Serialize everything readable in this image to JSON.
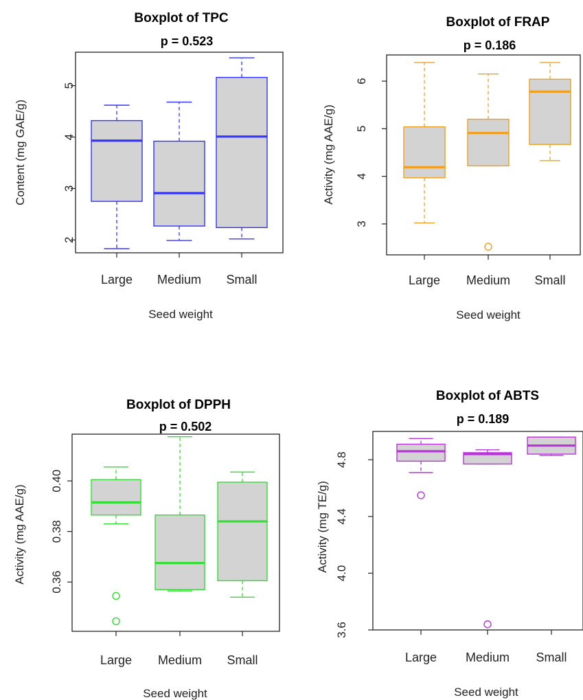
{
  "chart_data": [
    {
      "type": "boxplot",
      "title": "Boxplot of TPC",
      "subtitle": "p = 0.523",
      "xlabel": "Seed weight",
      "ylabel": "Content (mg GAE/g)",
      "categories": [
        "Large",
        "Medium",
        "Small"
      ],
      "yticks": [
        "2",
        "3",
        "4",
        "5"
      ],
      "ylim": [
        1.75,
        5.65
      ],
      "color": "#3333ff",
      "boxes": [
        {
          "category": "Large",
          "whisker_low": 1.83,
          "q1": 2.75,
          "median": 3.93,
          "q3": 4.32,
          "whisker_high": 4.62,
          "outliers": []
        },
        {
          "category": "Medium",
          "whisker_low": 1.99,
          "q1": 2.27,
          "median": 2.91,
          "q3": 3.92,
          "whisker_high": 4.68,
          "outliers": []
        },
        {
          "category": "Small",
          "whisker_low": 2.02,
          "q1": 2.24,
          "median": 4.01,
          "q3": 5.16,
          "whisker_high": 5.54,
          "outliers": []
        }
      ]
    },
    {
      "type": "boxplot",
      "title": "Boxplot of FRAP",
      "subtitle": "p = 0.186",
      "xlabel": "Seed weight",
      "ylabel": "Activity (mg AAE/g)",
      "categories": [
        "Large",
        "Medium",
        "Small"
      ],
      "yticks": [
        "3",
        "4",
        "5",
        "6"
      ],
      "ylim": [
        2.35,
        6.55
      ],
      "color": "#f0a020",
      "boxes": [
        {
          "category": "Large",
          "whisker_low": 3.02,
          "q1": 3.97,
          "median": 4.19,
          "q3": 5.04,
          "whisker_high": 6.39,
          "outliers": []
        },
        {
          "category": "Medium",
          "whisker_low": 4.22,
          "q1": 4.22,
          "median": 4.91,
          "q3": 5.2,
          "whisker_high": 6.15,
          "outliers": [
            2.52
          ]
        },
        {
          "category": "Small",
          "whisker_low": 4.33,
          "q1": 4.67,
          "median": 5.78,
          "q3": 6.04,
          "whisker_high": 6.39,
          "outliers": []
        }
      ]
    },
    {
      "type": "boxplot",
      "title": "Boxplot of DPPH",
      "subtitle": "p = 0.502",
      "xlabel": "Seed weight",
      "ylabel": "Activity (mg AAE/g)",
      "categories": [
        "Large",
        "Medium",
        "Small"
      ],
      "yticks": [
        "0.36",
        "0.38",
        "0.40"
      ],
      "ylim": [
        0.3405,
        0.4185
      ],
      "color": "#33dd33",
      "boxes": [
        {
          "category": "Large",
          "whisker_low": 0.383,
          "q1": 0.3865,
          "median": 0.3915,
          "q3": 0.4005,
          "whisker_high": 0.4055,
          "outliers": [
            0.3545,
            0.3445
          ]
        },
        {
          "category": "Medium",
          "whisker_low": 0.3565,
          "q1": 0.357,
          "median": 0.3675,
          "q3": 0.3865,
          "whisker_high": 0.4175,
          "outliers": []
        },
        {
          "category": "Small",
          "whisker_low": 0.354,
          "q1": 0.3605,
          "median": 0.384,
          "q3": 0.3995,
          "whisker_high": 0.4035,
          "outliers": []
        }
      ]
    },
    {
      "type": "boxplot",
      "title": "Boxplot of ABTS",
      "subtitle": "p = 0.189",
      "xlabel": "Seed weight",
      "ylabel": "Activity (mg TE/g)",
      "categories": [
        "Large",
        "Medium",
        "Small"
      ],
      "yticks": [
        "3.6",
        "4.0",
        "4.4",
        "4.8"
      ],
      "ylim": [
        3.6,
        5.0
      ],
      "color": "#bb33dd",
      "boxes": [
        {
          "category": "Large",
          "whisker_low": 4.71,
          "q1": 4.79,
          "median": 4.86,
          "q3": 4.91,
          "whisker_high": 4.95,
          "outliers": [
            4.55
          ]
        },
        {
          "category": "Medium",
          "whisker_low": 4.77,
          "q1": 4.77,
          "median": 4.84,
          "q3": 4.85,
          "whisker_high": 4.87,
          "outliers": [
            3.64
          ]
        },
        {
          "category": "Small",
          "whisker_low": 4.83,
          "q1": 4.84,
          "median": 4.9,
          "q3": 4.96,
          "whisker_high": 4.96,
          "outliers": []
        }
      ]
    }
  ]
}
